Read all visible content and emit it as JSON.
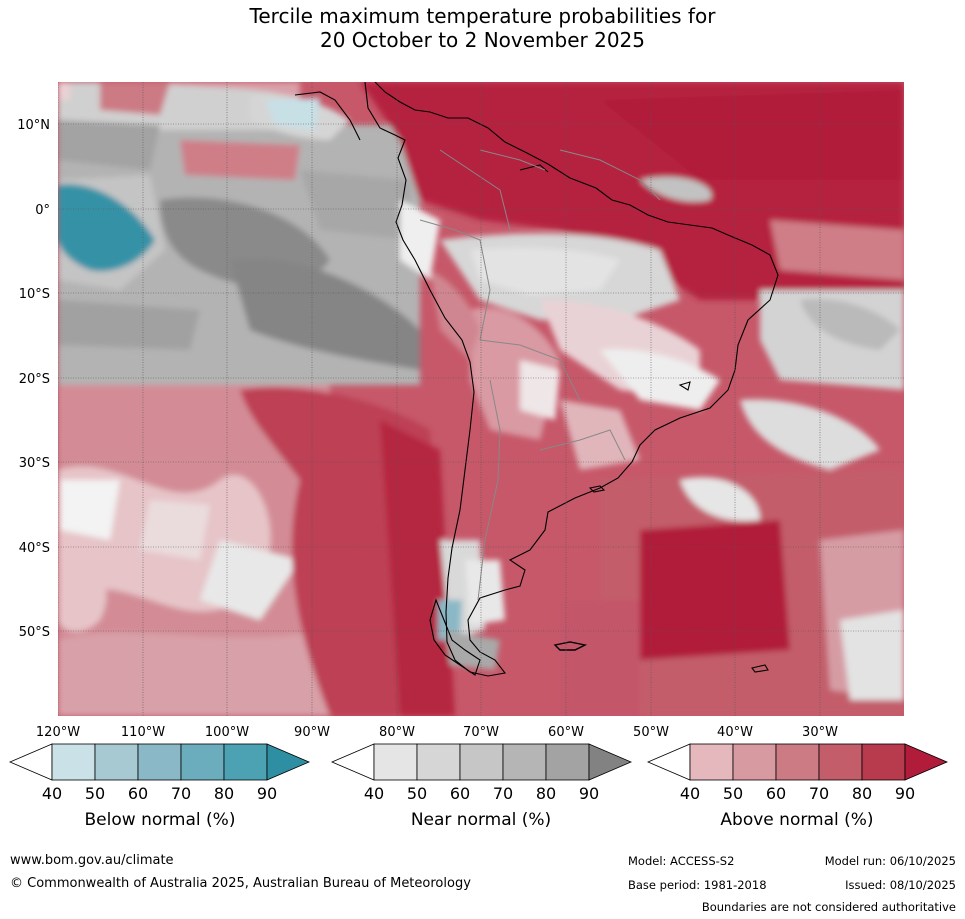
{
  "title": {
    "line1": "Tercile maximum temperature probabilities for",
    "line2": "20 October to 2 November 2025"
  },
  "map": {
    "lat_labels": [
      "10°N",
      "0°",
      "10°S",
      "20°S",
      "30°S",
      "40°S",
      "50°S"
    ],
    "lon_labels": [
      "120°W",
      "110°W",
      "100°W",
      "90°W",
      "80°W",
      "70°W",
      "60°W",
      "50°W",
      "40°W",
      "30°W"
    ],
    "region": "South America and surrounding oceans"
  },
  "legends": [
    {
      "label": "Below normal (%)",
      "ticks": [
        "40",
        "50",
        "60",
        "70",
        "80",
        "90"
      ],
      "colors": [
        "#ffffff",
        "#c9e1e7",
        "#a7c9d1",
        "#8bb8c6",
        "#6badbc",
        "#4ca2b2",
        "#2e8fa3"
      ]
    },
    {
      "label": "Near normal (%)",
      "ticks": [
        "40",
        "50",
        "60",
        "70",
        "80",
        "90"
      ],
      "colors": [
        "#ffffff",
        "#e5e5e5",
        "#d6d6d6",
        "#c6c6c6",
        "#b5b5b5",
        "#a3a3a3",
        "#828282"
      ]
    },
    {
      "label": "Above normal (%)",
      "ticks": [
        "40",
        "50",
        "60",
        "70",
        "80",
        "90"
      ],
      "colors": [
        "#ffffff",
        "#e4b8bc",
        "#d89aa1",
        "#cc7a84",
        "#c35d6a",
        "#b83a4d",
        "#b11c3b"
      ]
    }
  ],
  "footer": {
    "website": "www.bom.gov.au/climate",
    "copyright": "© Commonwealth of Australia 2025, Australian Bureau of Meteorology",
    "model": "Model: ACCESS-S2",
    "base_period": "Base period: 1981-2018",
    "model_run": "Model run: 06/10/2025",
    "issued": "Issued: 08/10/2025",
    "disclaimer": "Boundaries are not considered authoritative"
  },
  "colors": {
    "ocean_gray": "#b4b4b4",
    "ocean_dark_gray": "#898989",
    "ocean_teal": "#3592a6",
    "above_red": "#b11c3b",
    "above_mid": "#c4576a",
    "above_light": "#d9a0a8",
    "coast": "#000000",
    "borders": "#888888"
  }
}
